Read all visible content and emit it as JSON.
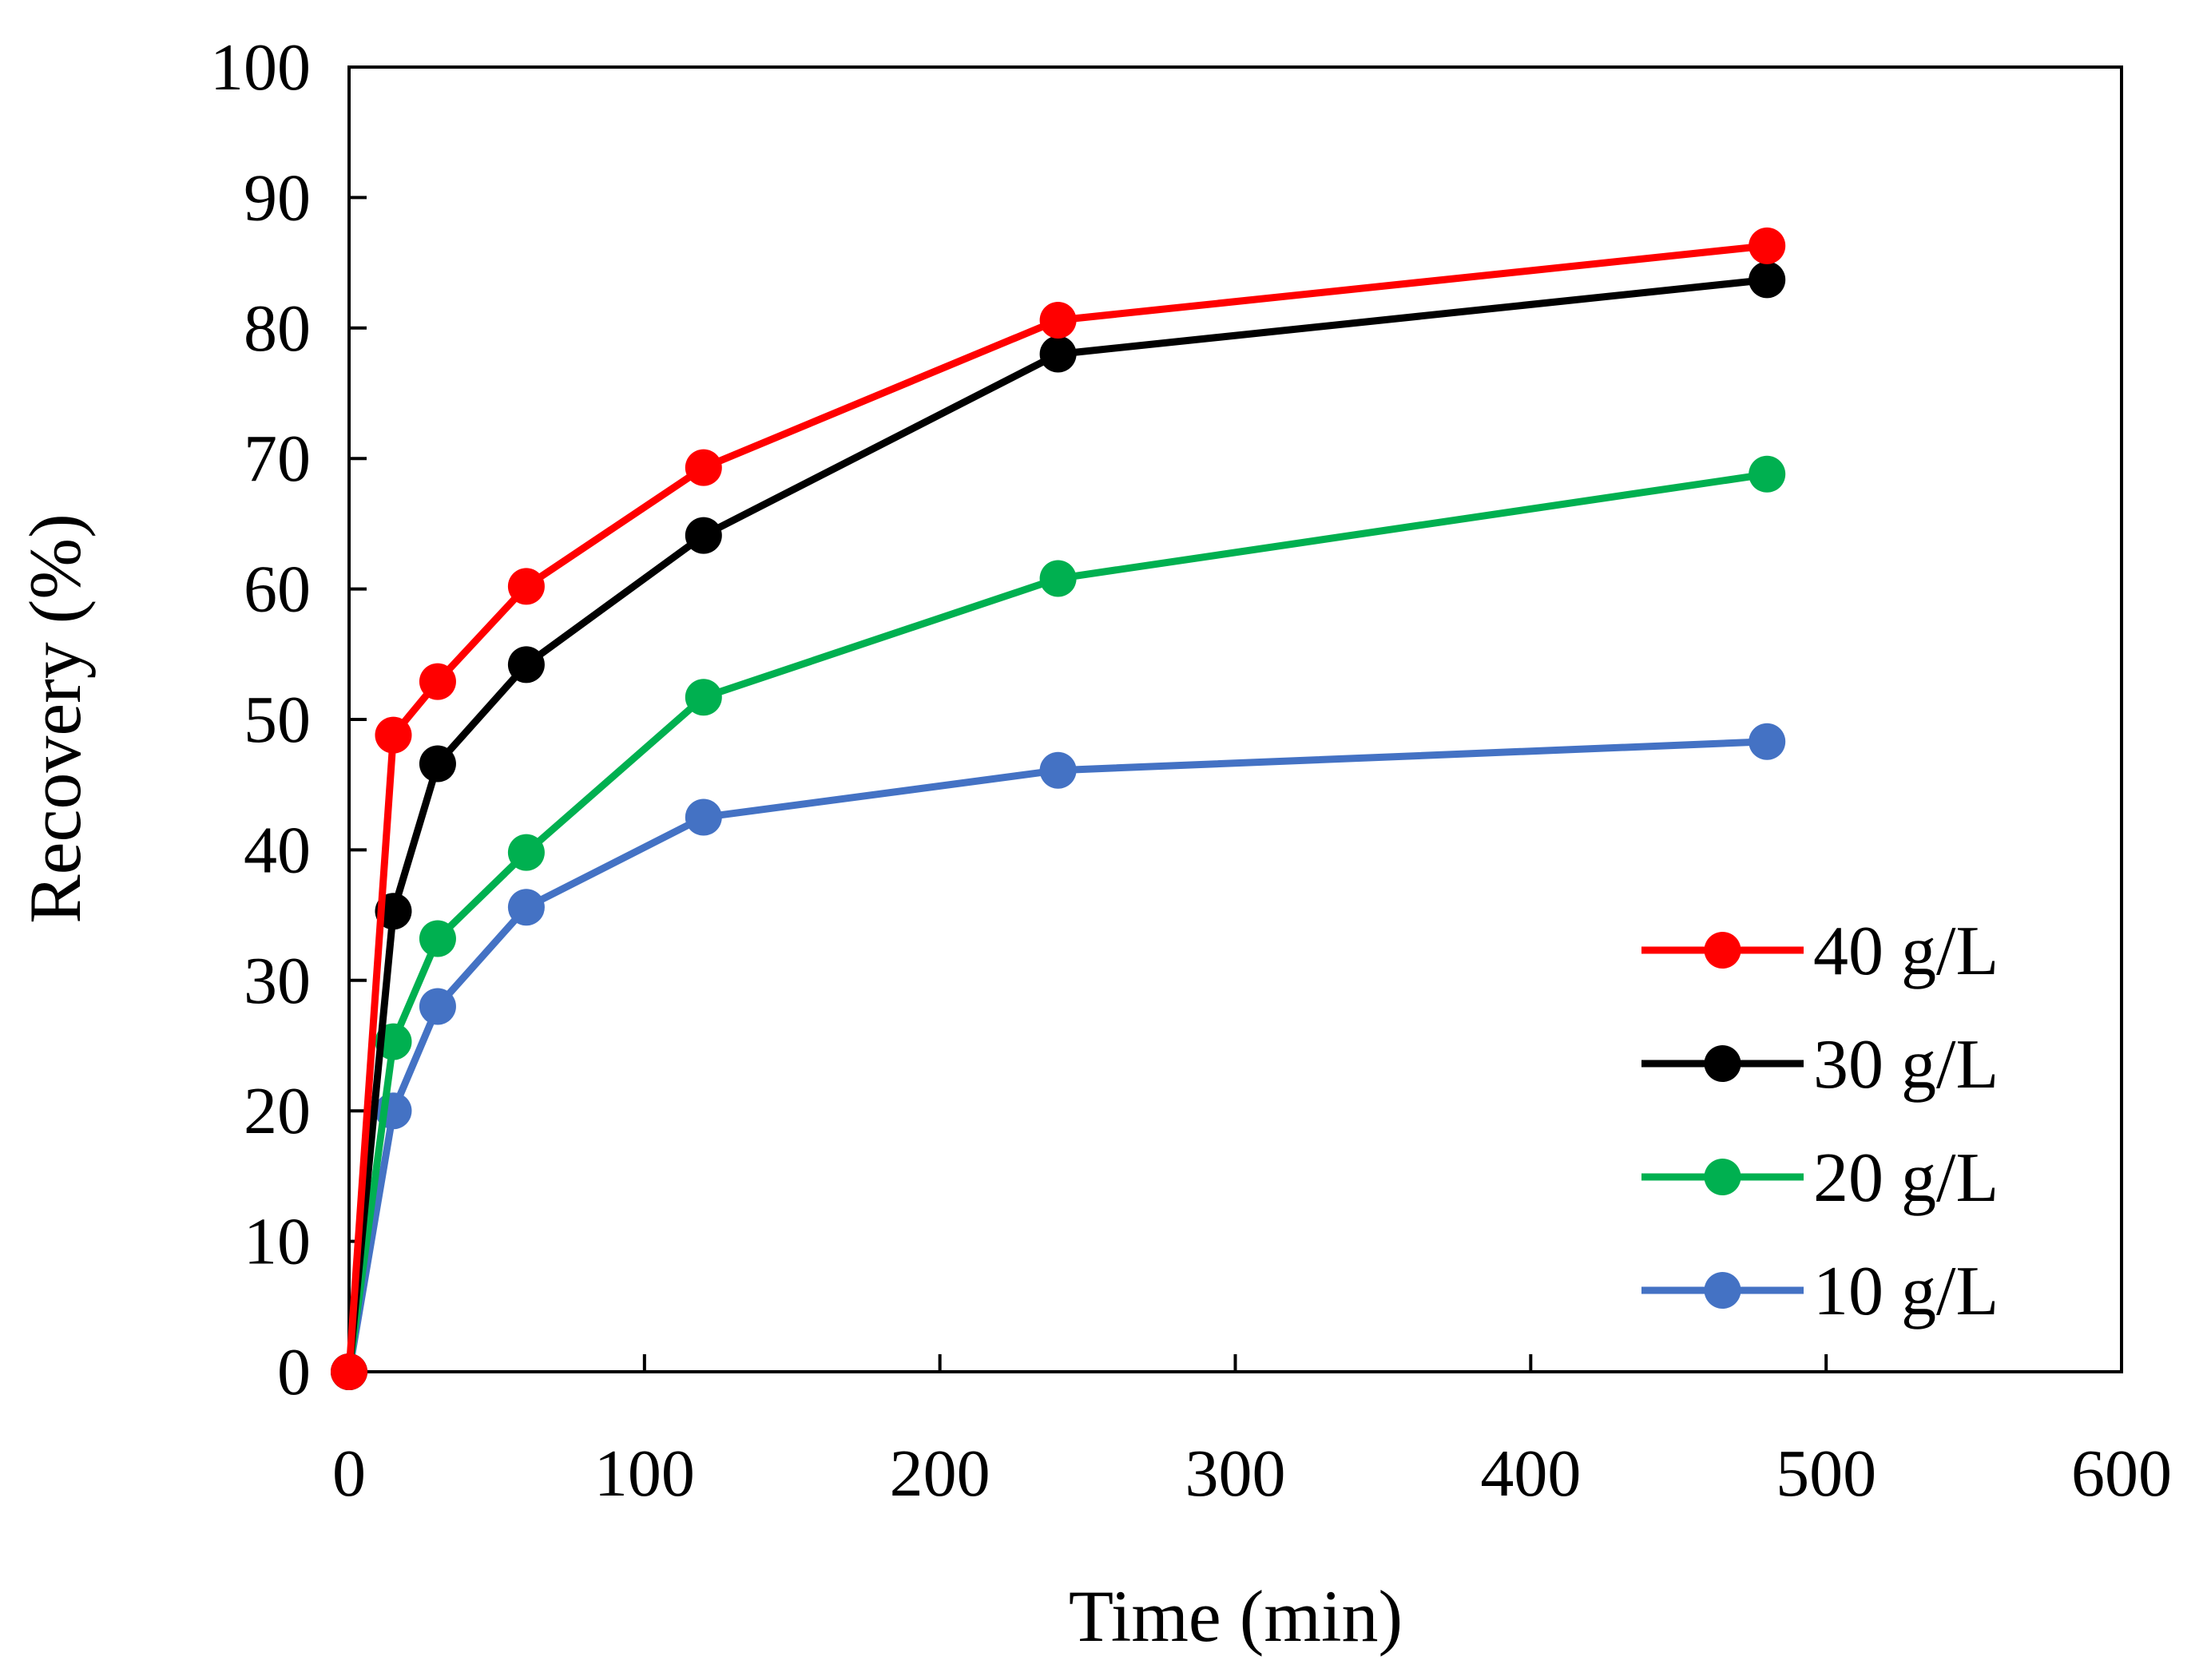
{
  "chart_data": {
    "type": "line",
    "title": "",
    "xlabel": "Time (min)",
    "ylabel": "Recovery (%)",
    "xlim": [
      0,
      600
    ],
    "ylim": [
      0,
      100
    ],
    "xticks": [
      0,
      100,
      200,
      300,
      400,
      500,
      600
    ],
    "yticks": [
      0,
      10,
      20,
      30,
      40,
      50,
      60,
      70,
      80,
      90,
      100
    ],
    "grid": false,
    "legend_position": "bottom-right",
    "x": [
      0,
      15,
      30,
      60,
      120,
      240,
      480
    ],
    "series": [
      {
        "name": "40 g/L",
        "color": "#ff0000",
        "values": [
          0,
          48.8,
          52.9,
          60.2,
          69.3,
          80.6,
          86.3
        ]
      },
      {
        "name": "30 g/L",
        "color": "#000000",
        "values": [
          0,
          35.3,
          46.6,
          54.2,
          64.1,
          78.0,
          83.7
        ]
      },
      {
        "name": "20 g/L",
        "color": "#00b050",
        "values": [
          0,
          25.3,
          33.2,
          39.8,
          51.7,
          60.8,
          68.8
        ]
      },
      {
        "name": "10 g/L",
        "color": "#4472c4",
        "values": [
          0,
          20.0,
          28.0,
          35.6,
          42.5,
          46.1,
          48.3
        ]
      }
    ]
  }
}
